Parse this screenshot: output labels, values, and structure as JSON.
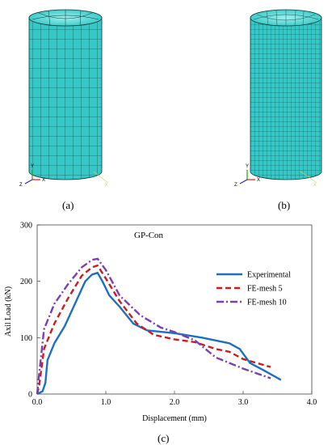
{
  "panels": {
    "a_label": "(a)",
    "b_label": "(b)",
    "c_label": "(c)",
    "triad": {
      "x": "X",
      "y": "Y",
      "z": "Z"
    }
  },
  "colors": {
    "cylinder_fill": "#35c8c6",
    "mesh_lines": "#0b3a3a",
    "experimental": "#1f6fc0",
    "fe_mesh5": "#c81e1e",
    "fe_mesh10": "#7b3fb0",
    "triad_x": "#d02020",
    "triad_y": "#20a020",
    "triad_z": "#2030c0"
  },
  "chart_data": {
    "type": "line",
    "title": "GP-Con",
    "xlabel": "Displacement  (mm)",
    "ylabel": "Axil Load (kN)",
    "xlim": [
      0,
      4.0
    ],
    "ylim": [
      0,
      300
    ],
    "xticks": [
      "0.0",
      "1.0",
      "2.0",
      "3.0",
      "4.0"
    ],
    "yticks": [
      "0",
      "100",
      "200",
      "300"
    ],
    "legend_position": "right",
    "series": [
      {
        "name": "Experimental",
        "style": "solid",
        "color": "#1f6fc0",
        "x": [
          0.0,
          0.08,
          0.12,
          0.15,
          0.25,
          0.4,
          0.55,
          0.7,
          0.8,
          0.88,
          0.95,
          1.05,
          1.2,
          1.4,
          1.6,
          2.0,
          2.4,
          2.8,
          2.95,
          3.1,
          3.3,
          3.55
        ],
        "y": [
          0,
          5,
          20,
          60,
          90,
          120,
          160,
          200,
          212,
          215,
          200,
          175,
          155,
          125,
          113,
          108,
          100,
          90,
          80,
          55,
          42,
          25
        ]
      },
      {
        "name": "FE-mesh 5",
        "style": "dashed",
        "color": "#c81e1e",
        "x": [
          0.0,
          0.03,
          0.1,
          0.25,
          0.45,
          0.65,
          0.8,
          0.88,
          1.0,
          1.2,
          1.45,
          1.7,
          2.0,
          2.3,
          2.6,
          2.8,
          3.0,
          3.2,
          3.4
        ],
        "y": [
          0,
          15,
          80,
          125,
          170,
          210,
          225,
          228,
          205,
          165,
          125,
          105,
          97,
          92,
          80,
          75,
          62,
          55,
          48
        ]
      },
      {
        "name": "FE-mesh 10",
        "style": "dashdot",
        "color": "#7b3fb0",
        "x": [
          0.0,
          0.02,
          0.1,
          0.25,
          0.45,
          0.65,
          0.8,
          0.88,
          1.0,
          1.2,
          1.5,
          1.8,
          2.0,
          2.3,
          2.6,
          3.0,
          3.4
        ],
        "y": [
          0,
          25,
          115,
          160,
          195,
          225,
          238,
          240,
          220,
          175,
          140,
          118,
          110,
          95,
          65,
          45,
          28
        ]
      }
    ]
  }
}
